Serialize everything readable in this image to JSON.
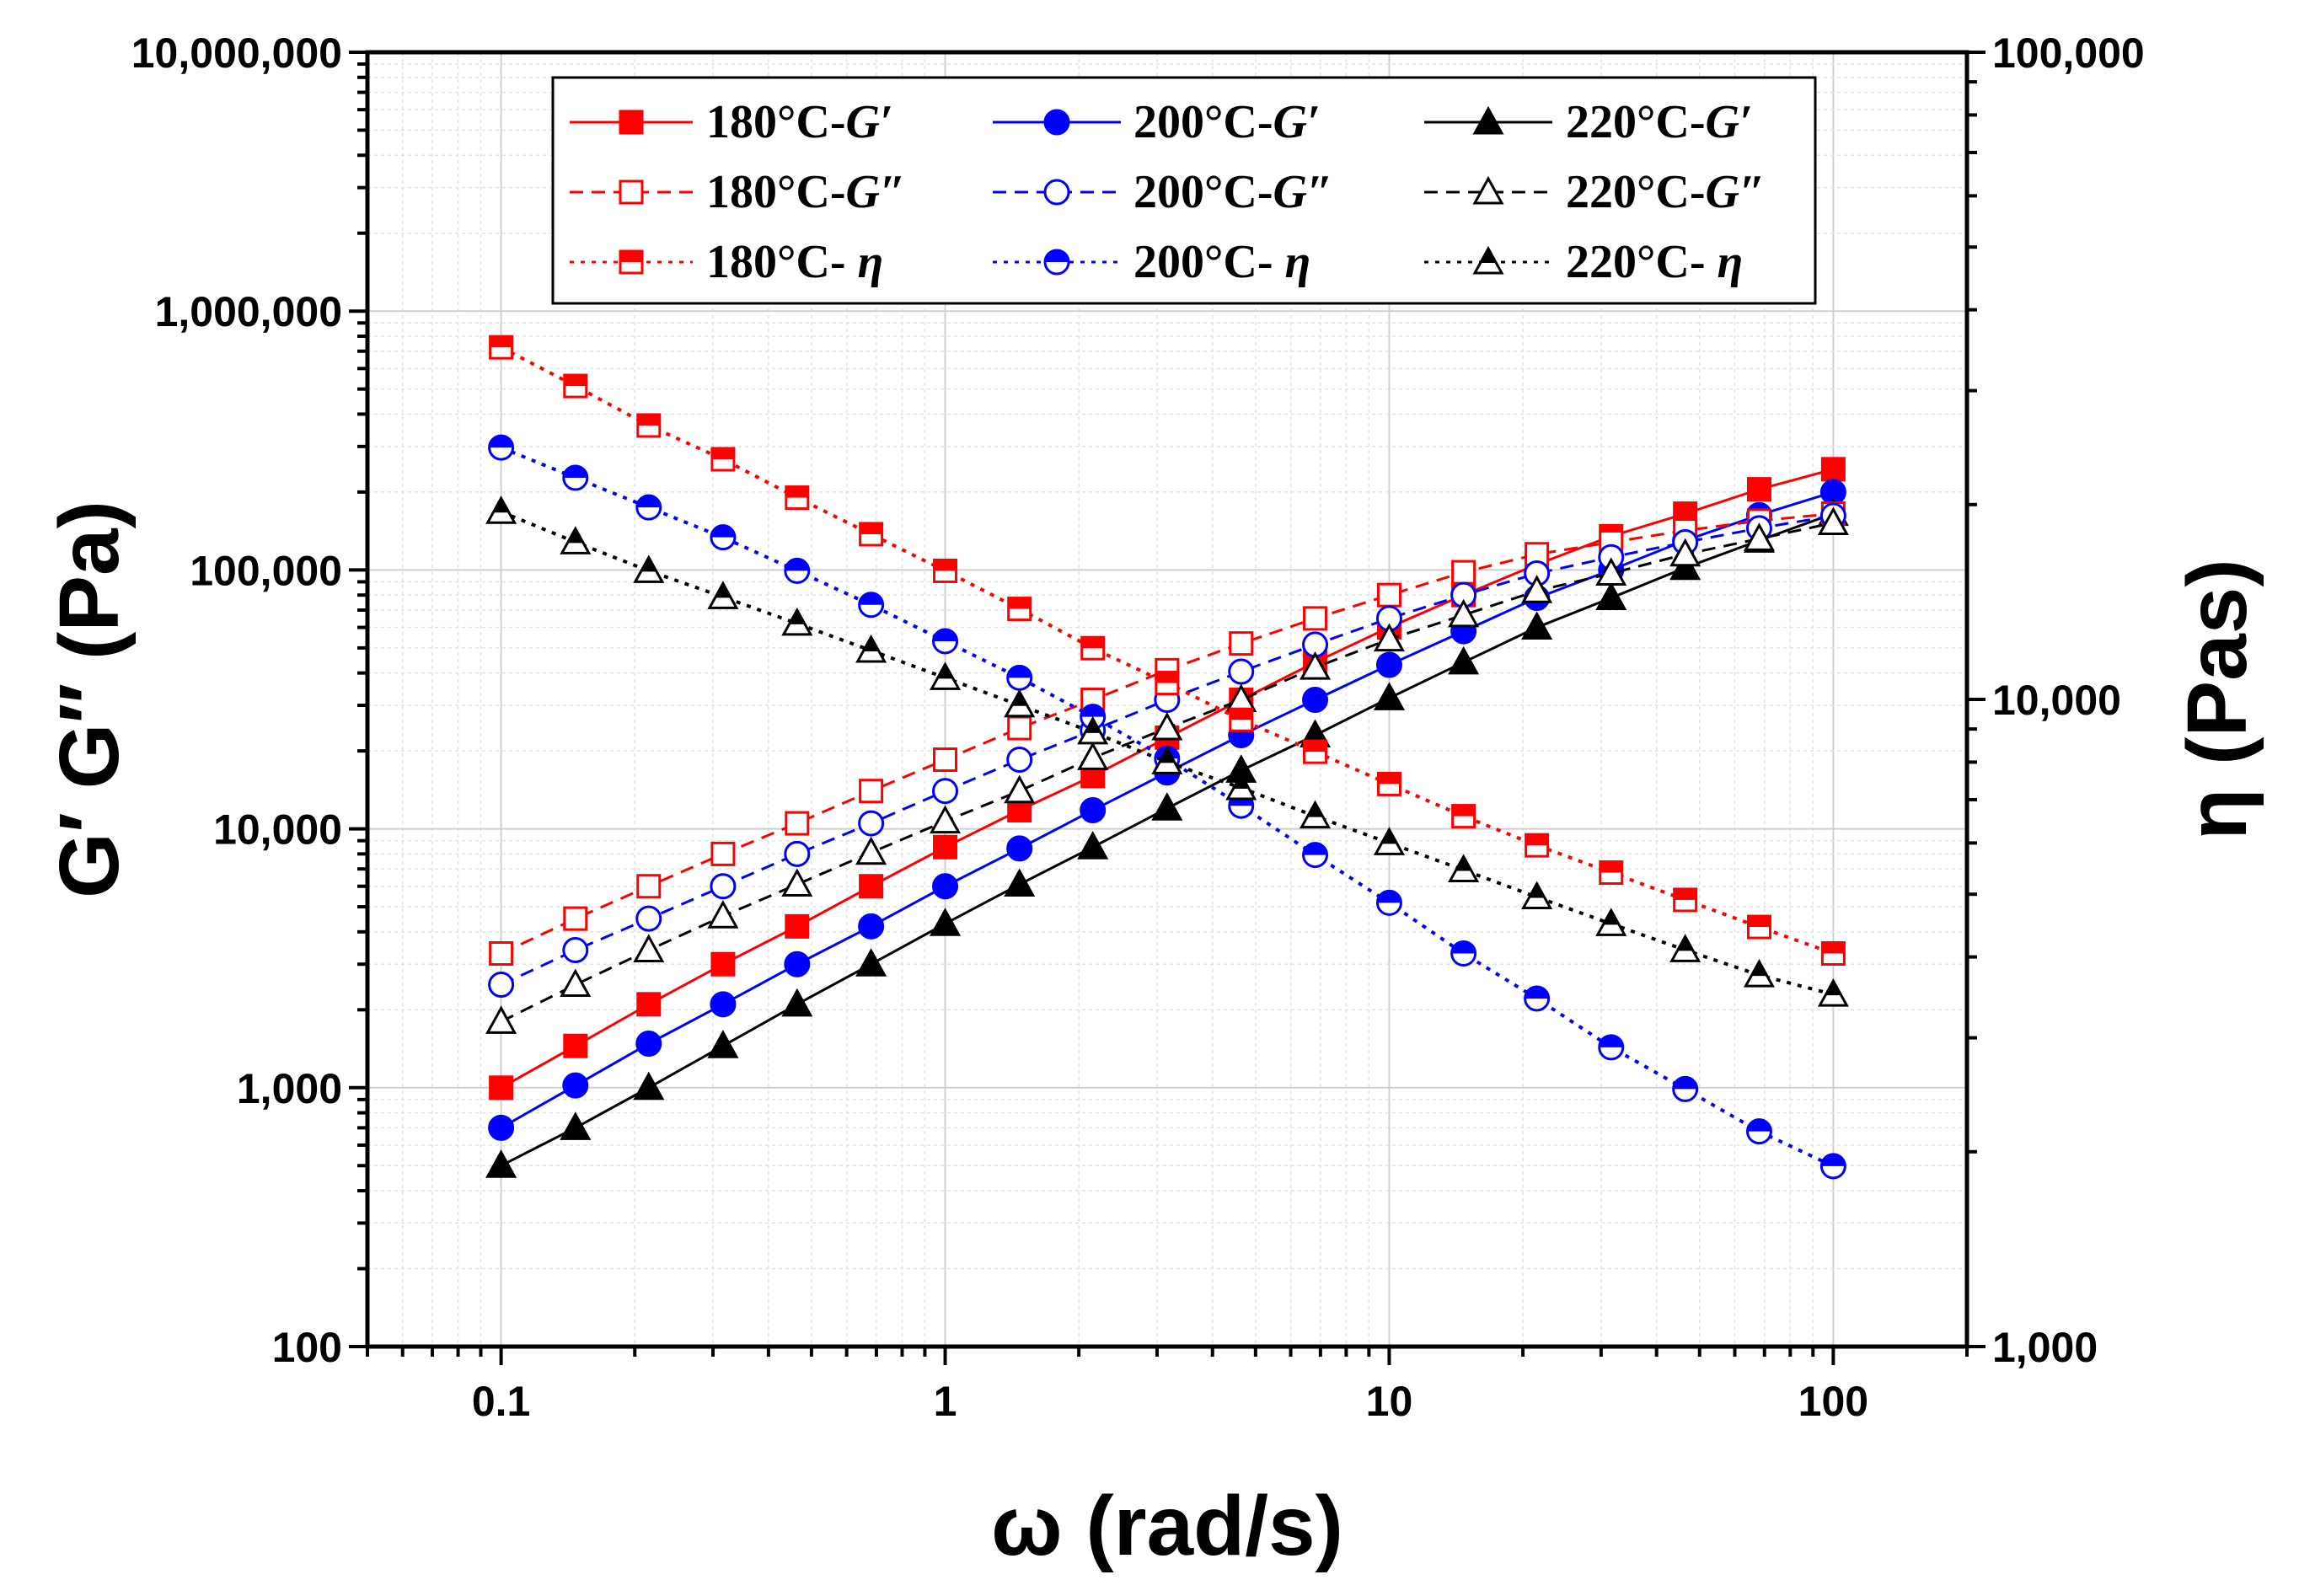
{
  "chart_data": {
    "type": "line",
    "title": "",
    "xlabel": "ω (rad/s)",
    "ylabel_left": "G′ G″ (Pa)",
    "ylabel_right": "η (Pas)",
    "x_scale": "log",
    "y_left_scale": "log",
    "y_right_scale": "log",
    "xlim": [
      0.05,
      200
    ],
    "ylim_left": [
      100,
      10000000
    ],
    "ylim_right": [
      1000,
      100000
    ],
    "grid": true,
    "legend_position": "top-center",
    "x_ticks": [
      0.1,
      1,
      10,
      100
    ],
    "x_tick_labels": [
      "0.1",
      "1",
      "10",
      "100"
    ],
    "y_left_ticks": [
      100,
      1000,
      10000,
      100000,
      1000000,
      10000000
    ],
    "y_left_tick_labels": [
      "100",
      "1,000",
      "10,000",
      "100,000",
      "1,000,000",
      "10,000,000"
    ],
    "y_right_ticks": [
      1000,
      10000,
      100000
    ],
    "y_right_tick_labels": [
      "1,000",
      "10,000",
      "100,000"
    ],
    "x": [
      0.1,
      0.147,
      0.215,
      0.316,
      0.464,
      0.681,
      1,
      1.47,
      2.15,
      3.16,
      4.64,
      6.81,
      10,
      14.7,
      21.5,
      31.6,
      46.4,
      68.1,
      100
    ],
    "series": [
      {
        "name": "180°C-G′",
        "axis": "left",
        "color": "#ff0000",
        "line": "solid",
        "marker": "square",
        "fill": "full",
        "values": [
          1000,
          1450,
          2100,
          3000,
          4200,
          6000,
          8500,
          11800,
          16000,
          22500,
          31500,
          44000,
          60000,
          80000,
          105000,
          135000,
          165000,
          205000,
          245000
        ]
      },
      {
        "name": "200°C-G′",
        "axis": "left",
        "color": "#0000ff",
        "line": "solid",
        "marker": "circle",
        "fill": "full",
        "values": [
          700,
          1020,
          1480,
          2100,
          3000,
          4200,
          6000,
          8400,
          11800,
          16500,
          23000,
          31500,
          43000,
          58000,
          78000,
          100000,
          130000,
          163000,
          200000
        ]
      },
      {
        "name": "220°C-G′",
        "axis": "left",
        "color": "#000000",
        "line": "solid",
        "marker": "triangle",
        "fill": "full",
        "values": [
          500,
          700,
          1000,
          1450,
          2100,
          3000,
          4300,
          6100,
          8500,
          12000,
          16800,
          23000,
          32000,
          44000,
          60000,
          78000,
          102000,
          130000,
          165000
        ]
      },
      {
        "name": "180°C-G″",
        "axis": "left",
        "color": "#ff0000",
        "line": "dashed",
        "marker": "square",
        "fill": "none",
        "values": [
          3300,
          4500,
          6000,
          8000,
          10500,
          14000,
          18500,
          24500,
          31500,
          41000,
          52000,
          65000,
          80000,
          98000,
          115000,
          128000,
          142000,
          155000,
          165000
        ]
      },
      {
        "name": "200°C-G″",
        "axis": "left",
        "color": "#0000ff",
        "line": "dashed",
        "marker": "circle",
        "fill": "none",
        "values": [
          2500,
          3400,
          4500,
          6000,
          8000,
          10500,
          14000,
          18500,
          24000,
          31500,
          40500,
          51500,
          65000,
          80000,
          97000,
          112000,
          128000,
          145000,
          162000
        ]
      },
      {
        "name": "220°C-G″",
        "axis": "left",
        "color": "#000000",
        "line": "dashed",
        "marker": "triangle",
        "fill": "none",
        "values": [
          1800,
          2500,
          3400,
          4600,
          6100,
          8100,
          10700,
          14000,
          18800,
          24500,
          31500,
          42000,
          54000,
          67000,
          83000,
          97000,
          115000,
          132000,
          152000
        ]
      },
      {
        "name": "180°C- η",
        "axis": "right",
        "color": "#ff0000",
        "line": "dotted",
        "marker": "square",
        "fill": "half",
        "values": [
          35000,
          30500,
          26500,
          23500,
          20500,
          18000,
          15800,
          13800,
          12000,
          10600,
          9300,
          8300,
          7400,
          6600,
          5950,
          5400,
          4900,
          4450,
          4050
        ]
      },
      {
        "name": "200°C- η",
        "axis": "right",
        "color": "#0000ff",
        "line": "dotted",
        "marker": "circle",
        "fill": "half",
        "values": [
          24500,
          22000,
          19800,
          17800,
          15800,
          14000,
          12300,
          10800,
          9400,
          8100,
          6850,
          5750,
          4850,
          4050,
          3450,
          2900,
          2500,
          2150,
          1900
        ]
      },
      {
        "name": "220°C- η",
        "axis": "right",
        "color": "#000000",
        "line": "dotted",
        "marker": "triangle",
        "fill": "half",
        "values": [
          19500,
          17500,
          15800,
          14400,
          13100,
          11900,
          10800,
          9800,
          8900,
          8000,
          7300,
          6600,
          6000,
          5450,
          4950,
          4500,
          4100,
          3750,
          3500
        ]
      }
    ]
  },
  "legend": {
    "col1": [
      "180°C-",
      "180°C-",
      "180°C- "
    ],
    "col2": [
      "200°C-",
      "200°C-",
      "200°C- "
    ],
    "col3": [
      "220°C-",
      "220°C-",
      "220°C- "
    ],
    "g1": "G′",
    "g2": "G″",
    "eta": "η"
  }
}
